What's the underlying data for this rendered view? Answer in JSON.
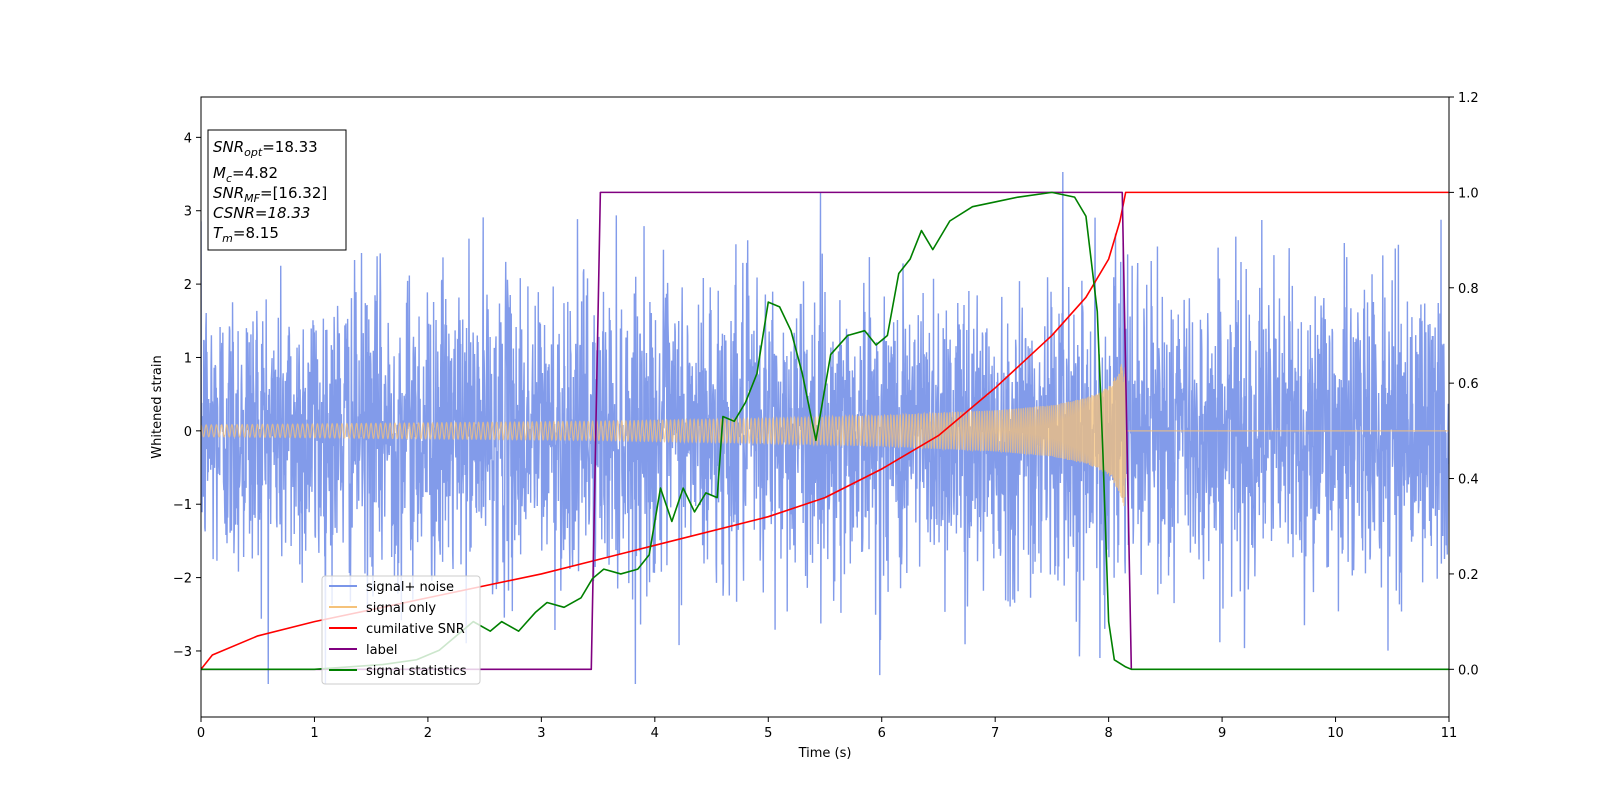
{
  "chart_data": {
    "type": "line",
    "xlabel": "Time (s)",
    "ylabel": "Whitened strain",
    "xlim": [
      0,
      11
    ],
    "ylim_left": [
      -3.9,
      4.55
    ],
    "ylim_right": [
      -0.1,
      1.2
    ],
    "xticks": [
      "0",
      "1",
      "2",
      "3",
      "4",
      "5",
      "6",
      "7",
      "8",
      "9",
      "10",
      "11"
    ],
    "yticks_left": [
      "−3",
      "−2",
      "−1",
      "0",
      "1",
      "2",
      "3",
      "4"
    ],
    "yticks_right": [
      "0.0",
      "0.2",
      "0.4",
      "0.6",
      "0.8",
      "1.0",
      "1.2"
    ],
    "grid": false,
    "legend_position": "lower-left",
    "annotations": {
      "snr_opt_base": "SNR",
      "snr_opt_sub": "opt",
      "snr_opt_value": "=18.33",
      "mc_base": "M",
      "mc_sub": "c",
      "mc_value": "=4.82",
      "snr_mf_base": "SNR",
      "snr_mf_sub": "MF",
      "snr_mf_value": "=[16.32]",
      "csnr": "CSNR=18.33",
      "tm_base": "T",
      "tm_sub": "m",
      "tm_value": "=8.15"
    },
    "series": [
      {
        "name": "signal+ noise",
        "axis": "left",
        "color": "#7b96e9",
        "kind": "gaussian noise plus chirp",
        "noise_std": 1.0,
        "noise_range_approx": [
          -3.45,
          4.15
        ]
      },
      {
        "name": "signal only",
        "axis": "left",
        "color": "#f5c27a",
        "kind": "chirp",
        "start_s": 0.0,
        "merger_s": 8.15,
        "amplitude_start": 0.08,
        "amplitude_peak": 1.1,
        "envelope_points": [
          [
            0,
            0.08
          ],
          [
            3.5,
            0.13
          ],
          [
            5,
            0.17
          ],
          [
            6,
            0.21
          ],
          [
            7,
            0.28
          ],
          [
            7.5,
            0.35
          ],
          [
            7.8,
            0.45
          ],
          [
            8.0,
            0.6
          ],
          [
            8.1,
            0.85
          ],
          [
            8.15,
            1.1
          ]
        ]
      },
      {
        "name": "cumilative SNR",
        "axis": "right",
        "color": "#ff0000",
        "points": [
          [
            0,
            0.0
          ],
          [
            0.1,
            0.03
          ],
          [
            0.5,
            0.07
          ],
          [
            1,
            0.1
          ],
          [
            2,
            0.15
          ],
          [
            3,
            0.2
          ],
          [
            3.5,
            0.23
          ],
          [
            4,
            0.26
          ],
          [
            5,
            0.32
          ],
          [
            5.5,
            0.36
          ],
          [
            6,
            0.42
          ],
          [
            6.5,
            0.49
          ],
          [
            7,
            0.59
          ],
          [
            7.5,
            0.7
          ],
          [
            7.8,
            0.78
          ],
          [
            8.0,
            0.86
          ],
          [
            8.1,
            0.94
          ],
          [
            8.15,
            1.0
          ],
          [
            11,
            1.0
          ]
        ]
      },
      {
        "name": "label",
        "axis": "right",
        "color": "#800080",
        "points": [
          [
            0,
            0.0
          ],
          [
            3.44,
            0.0
          ],
          [
            3.52,
            1.0
          ],
          [
            8.12,
            1.0
          ],
          [
            8.2,
            0.0
          ]
        ]
      },
      {
        "name": "signal statistics",
        "axis": "right",
        "color": "#008000",
        "points": [
          [
            0,
            0.0
          ],
          [
            1.0,
            0.0
          ],
          [
            1.6,
            0.01
          ],
          [
            1.9,
            0.02
          ],
          [
            2.1,
            0.04
          ],
          [
            2.25,
            0.07
          ],
          [
            2.4,
            0.1
          ],
          [
            2.55,
            0.08
          ],
          [
            2.65,
            0.1
          ],
          [
            2.8,
            0.08
          ],
          [
            2.95,
            0.12
          ],
          [
            3.05,
            0.14
          ],
          [
            3.2,
            0.13
          ],
          [
            3.35,
            0.15
          ],
          [
            3.45,
            0.19
          ],
          [
            3.55,
            0.21
          ],
          [
            3.7,
            0.2
          ],
          [
            3.85,
            0.21
          ],
          [
            3.95,
            0.24
          ],
          [
            4.05,
            0.38
          ],
          [
            4.15,
            0.31
          ],
          [
            4.25,
            0.38
          ],
          [
            4.35,
            0.33
          ],
          [
            4.45,
            0.37
          ],
          [
            4.55,
            0.36
          ],
          [
            4.6,
            0.53
          ],
          [
            4.7,
            0.52
          ],
          [
            4.8,
            0.56
          ],
          [
            4.9,
            0.62
          ],
          [
            5.0,
            0.77
          ],
          [
            5.1,
            0.76
          ],
          [
            5.2,
            0.71
          ],
          [
            5.3,
            0.62
          ],
          [
            5.42,
            0.48
          ],
          [
            5.55,
            0.66
          ],
          [
            5.7,
            0.7
          ],
          [
            5.85,
            0.71
          ],
          [
            5.95,
            0.68
          ],
          [
            6.05,
            0.7
          ],
          [
            6.15,
            0.83
          ],
          [
            6.25,
            0.86
          ],
          [
            6.35,
            0.92
          ],
          [
            6.45,
            0.88
          ],
          [
            6.6,
            0.94
          ],
          [
            6.8,
            0.97
          ],
          [
            7.0,
            0.98
          ],
          [
            7.2,
            0.99
          ],
          [
            7.5,
            1.0
          ],
          [
            7.7,
            0.99
          ],
          [
            7.8,
            0.95
          ],
          [
            7.9,
            0.75
          ],
          [
            7.95,
            0.45
          ],
          [
            8.0,
            0.1
          ],
          [
            8.05,
            0.02
          ],
          [
            8.15,
            0.005
          ],
          [
            8.2,
            0.0
          ],
          [
            11,
            0.0
          ]
        ]
      }
    ]
  }
}
